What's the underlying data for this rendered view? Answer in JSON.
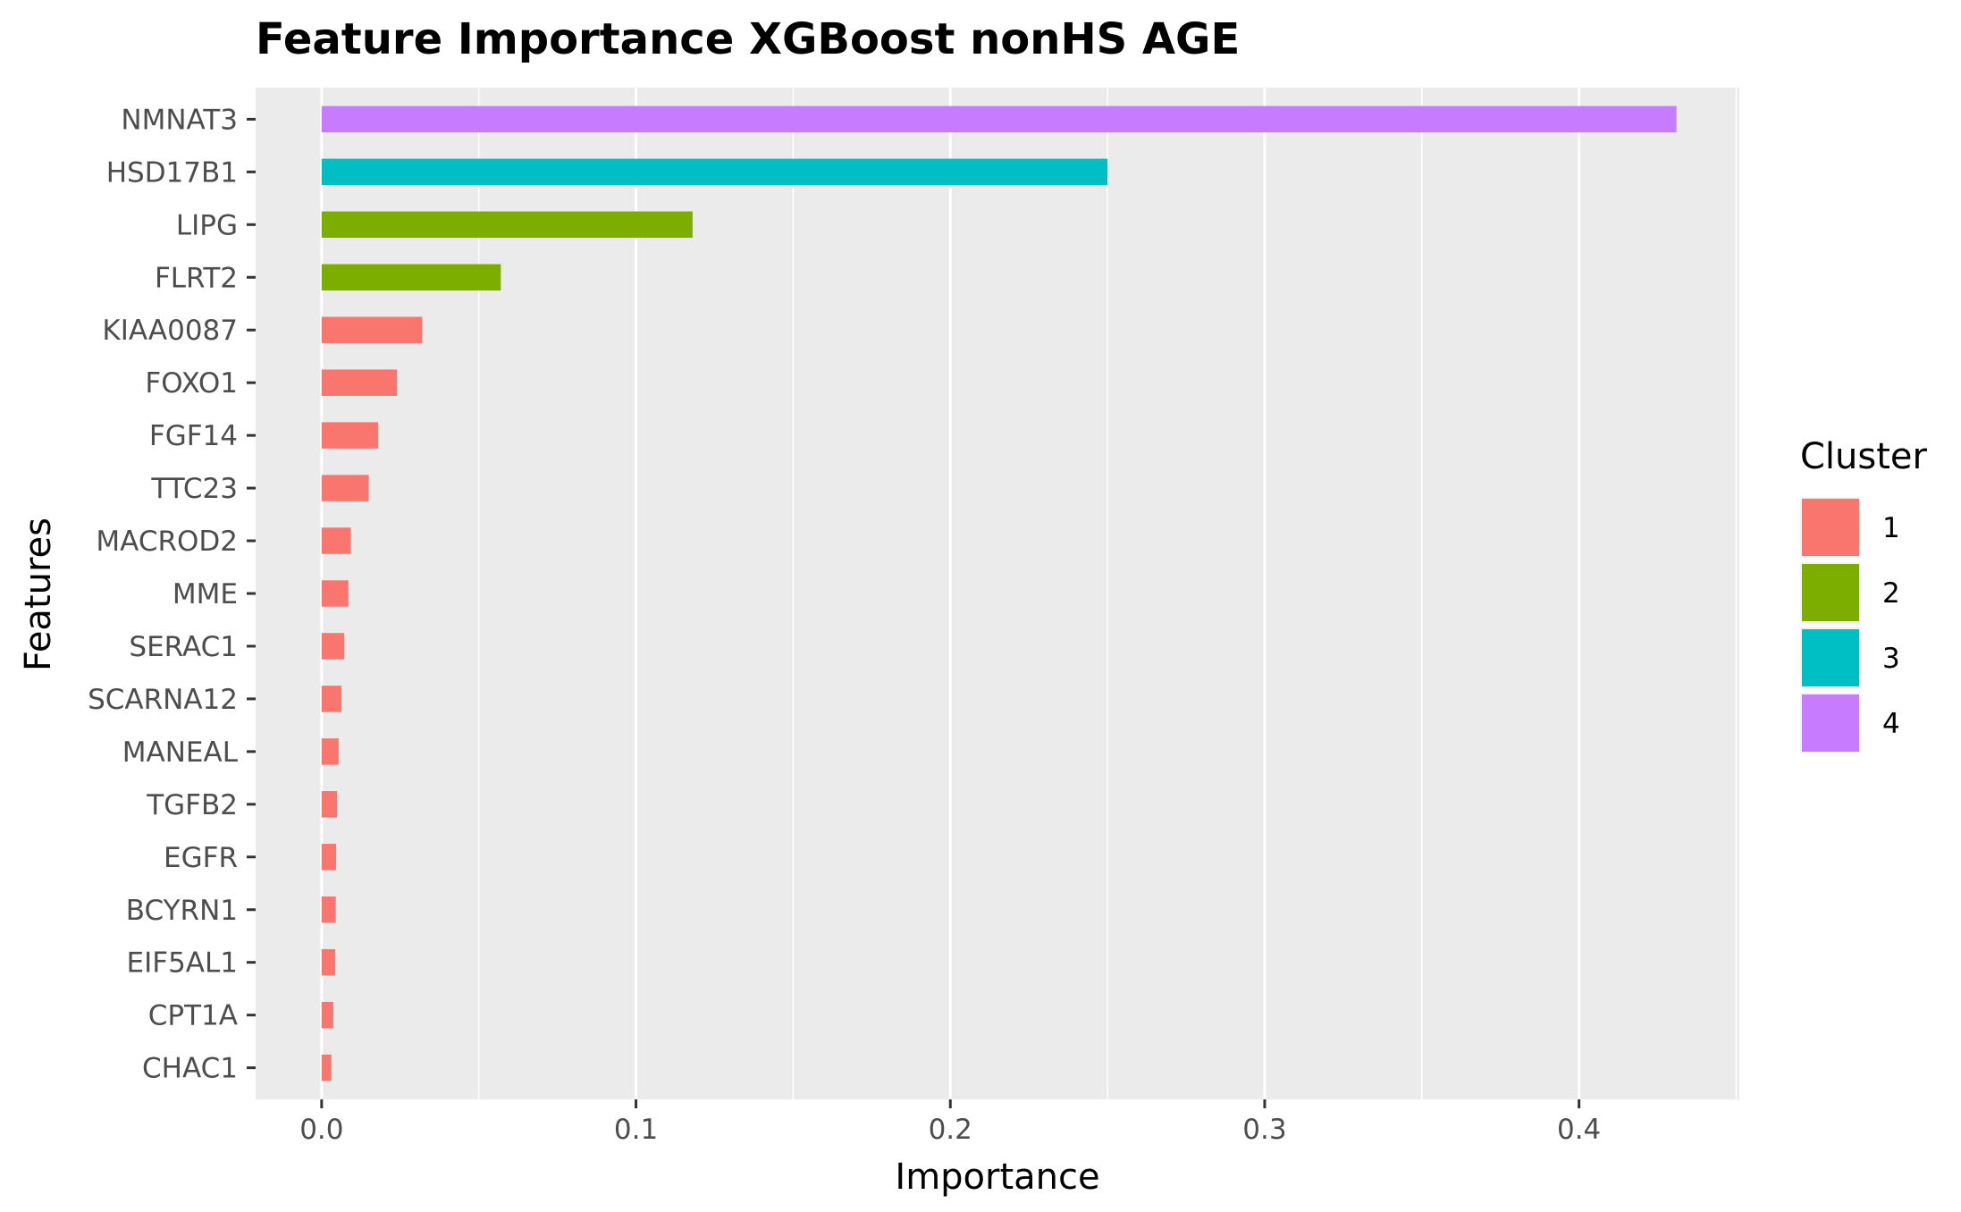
{
  "chart_data": {
    "type": "bar",
    "orientation": "horizontal",
    "title": "Feature Importance XGBoost nonHS AGE",
    "xlabel": "Importance",
    "ylabel": "Features",
    "xlim": [
      -0.021,
      0.451
    ],
    "x_ticks": [
      0.0,
      0.1,
      0.2,
      0.3,
      0.4
    ],
    "x_tick_labels": [
      "0.0",
      "0.1",
      "0.2",
      "0.3",
      "0.4"
    ],
    "grid": true,
    "legend": {
      "title": "Cluster",
      "placement": "right",
      "entries": [
        {
          "label": "1",
          "color": "#F8766D"
        },
        {
          "label": "2",
          "color": "#7CAE00"
        },
        {
          "label": "3",
          "color": "#00BFC4"
        },
        {
          "label": "4",
          "color": "#C77CFF"
        }
      ]
    },
    "categories": [
      "NMNAT3",
      "HSD17B1",
      "LIPG",
      "FLRT2",
      "KIAA0087",
      "FOXO1",
      "FGF14",
      "TTC23",
      "MACROD2",
      "MME",
      "SERAC1",
      "SCARNA12",
      "MANEAL",
      "TGFB2",
      "EGFR",
      "BCYRN1",
      "EIF5AL1",
      "CPT1A",
      "CHAC1"
    ],
    "values": [
      0.431,
      0.25,
      0.118,
      0.057,
      0.032,
      0.024,
      0.018,
      0.015,
      0.0093,
      0.0085,
      0.0072,
      0.0063,
      0.0054,
      0.0049,
      0.0046,
      0.0045,
      0.0043,
      0.0037,
      0.0031
    ],
    "clusters": [
      "4",
      "3",
      "2",
      "2",
      "1",
      "1",
      "1",
      "1",
      "1",
      "1",
      "1",
      "1",
      "1",
      "1",
      "1",
      "1",
      "1",
      "1",
      "1"
    ]
  }
}
